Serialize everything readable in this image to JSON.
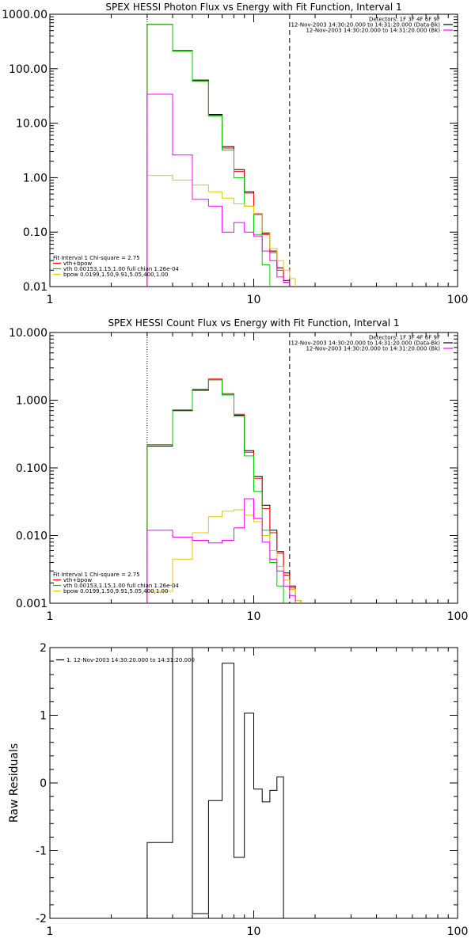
{
  "chart_data": [
    {
      "type": "line",
      "title": "SPEX HESSI Photon Flux vs Energy with Fit Function, Interval 1",
      "xscale": "log",
      "yscale": "log",
      "xlim": [
        1,
        100
      ],
      "ylim": [
        0.01,
        1000
      ],
      "x_tick_labels": [
        "1",
        "10",
        "100"
      ],
      "y_tick_labels": [
        "0.01",
        "0.10",
        "1.00",
        "10.00",
        "100.00",
        "1000.00"
      ],
      "vlines": [
        {
          "x": 3,
          "style": "dotted"
        },
        {
          "x": 15,
          "style": "dashed"
        }
      ],
      "legend_top_right": [
        {
          "text": "Detectors: 1F 3F 4F 6F 9F",
          "color": ""
        },
        {
          "text": "12-Nov-2003 14:30:20.000 to 14:31:20.000 (Data-Bk)",
          "color": "#000000"
        },
        {
          "text": "12-Nov-2003 14:30:20.000 to 14:31:20.000 (Bk)",
          "color": "#ff00ff"
        }
      ],
      "legend_bottom_left": [
        {
          "text": "Fit Interval 1   Chi-square = 2.75",
          "color": ""
        },
        {
          "text": "vth+bpow",
          "color": "#ff0000"
        },
        {
          "text": "vth 0.00153,1.15,1.00  full chian 1.26e-04",
          "color": "#00cc00"
        },
        {
          "text": "bpow 0.0199,1.50,9.91,5.05,400,1.00",
          "color": "#e6c800"
        }
      ],
      "edges": [
        3,
        4,
        5,
        6,
        7,
        8,
        9,
        10,
        11,
        12,
        13,
        14,
        15,
        16,
        17,
        18
      ],
      "series": [
        {
          "name": "Data-Bk",
          "color": "#000000",
          "values": [
            650,
            215,
            62,
            14.5,
            3.7,
            1.4,
            0.55,
            0.22,
            0.095,
            0.045,
            0.022,
            0.013,
            null,
            null,
            null
          ]
        },
        {
          "name": "vth+bpow",
          "color": "#ff0000",
          "values": [
            650,
            210,
            60,
            14,
            3.5,
            1.3,
            0.52,
            0.21,
            0.09,
            0.042,
            0.02,
            0.012,
            null,
            null,
            null
          ]
        },
        {
          "name": "vth",
          "color": "#00cc00",
          "values": [
            650,
            210,
            59,
            13.5,
            3.2,
            1.0,
            0.3,
            0.09,
            0.025,
            0.007,
            null,
            null,
            null,
            null,
            null
          ]
        },
        {
          "name": "bpow",
          "color": "#e6c800",
          "values": [
            1.1,
            0.9,
            0.73,
            0.55,
            0.42,
            0.33,
            0.3,
            0.22,
            0.1,
            0.05,
            0.03,
            0.02,
            0.014,
            null,
            null
          ]
        },
        {
          "name": "Bk",
          "color": "#ff00ff",
          "values": [
            34,
            2.6,
            0.4,
            0.3,
            0.1,
            0.15,
            0.1,
            0.085,
            0.045,
            0.03,
            0.015,
            0.012,
            null,
            null,
            null
          ]
        }
      ]
    },
    {
      "type": "line",
      "title": "SPEX HESSI Count Flux vs Energy with Fit Function, Interval 1",
      "xscale": "log",
      "yscale": "log",
      "xlim": [
        1,
        100
      ],
      "ylim": [
        0.001,
        10
      ],
      "x_tick_labels": [
        "1",
        "10",
        "100"
      ],
      "y_tick_labels": [
        "0.001",
        "0.010",
        "0.100",
        "1.000",
        "10.000"
      ],
      "vlines": [
        {
          "x": 3,
          "style": "dotted"
        },
        {
          "x": 15,
          "style": "dashed"
        }
      ],
      "legend_top_right": [
        {
          "text": "Detectors: 1F 3F 4F 6F 9F",
          "color": ""
        },
        {
          "text": "12-Nov-2003 14:30:20.000 to 14:31:20.000 (Data-Bk)",
          "color": "#000000"
        },
        {
          "text": "12-Nov-2003 14:30:20.000 to 14:31:20.000 (Bk)",
          "color": "#ff00ff"
        }
      ],
      "legend_bottom_left": [
        {
          "text": "Fit Interval 1   Chi-square = 2.75",
          "color": ""
        },
        {
          "text": "vth+bpow",
          "color": "#ff0000"
        },
        {
          "text": "vth 0.00153,1.15,1.00  full chian 1.26e-04",
          "color": "#00cc00"
        },
        {
          "text": "bpow 0.0199,1.50,9.91,5.05,400,1.00",
          "color": "#e6c800"
        }
      ],
      "edges": [
        3,
        4,
        5,
        6,
        7,
        8,
        9,
        10,
        11,
        12,
        13,
        14,
        15,
        16,
        17,
        18,
        19,
        20
      ],
      "series": [
        {
          "name": "Data-Bk",
          "color": "#000000",
          "values": [
            0.21,
            0.7,
            1.4,
            2.0,
            1.2,
            0.6,
            0.18,
            0.075,
            0.028,
            0.012,
            0.0058,
            0.0028,
            0.0018,
            0.0011,
            null,
            null,
            null
          ]
        },
        {
          "name": "vth+bpow",
          "color": "#ff0000",
          "values": [
            0.22,
            0.72,
            1.45,
            2.05,
            1.25,
            0.62,
            0.17,
            0.07,
            0.025,
            0.011,
            0.0055,
            0.0026,
            0.0017,
            0.0011,
            null,
            null,
            null
          ]
        },
        {
          "name": "vth",
          "color": "#00cc00",
          "values": [
            0.22,
            0.72,
            1.45,
            2.0,
            1.2,
            0.58,
            0.15,
            0.045,
            0.012,
            0.004,
            0.0018,
            null,
            null,
            null,
            null,
            null,
            null
          ]
        },
        {
          "name": "bpow",
          "color": "#e6c800",
          "values": [
            0.0015,
            0.0045,
            0.011,
            0.019,
            0.023,
            0.024,
            0.02,
            0.016,
            0.01,
            0.006,
            0.0035,
            0.0022,
            0.0016,
            0.0011,
            null,
            null,
            null
          ]
        },
        {
          "name": "Bk",
          "color": "#ff00ff",
          "values": [
            0.012,
            0.0095,
            0.0085,
            0.0078,
            0.0085,
            0.013,
            0.035,
            0.018,
            0.008,
            0.0045,
            0.003,
            0.0018,
            0.0013,
            null,
            null,
            null,
            null
          ]
        }
      ]
    },
    {
      "type": "line",
      "title": "",
      "xscale": "log",
      "yscale": "linear",
      "xlim": [
        1,
        100
      ],
      "ylim": [
        -2,
        2
      ],
      "ylabel": "Raw Residuals",
      "x_tick_labels": [
        "1",
        "10",
        "100"
      ],
      "y_tick_labels": [
        "-2",
        "-1",
        "0",
        "1",
        "2"
      ],
      "y_tick_values": [
        -2,
        -1,
        0,
        1,
        2
      ],
      "legend_top_left": [
        {
          "text": "1. 12-Nov-2003 14:30:20.000 to 14:31:20.000",
          "color": "#000000"
        }
      ],
      "edges": [
        3,
        4,
        5,
        6,
        7,
        8,
        9,
        10,
        11,
        12,
        13,
        14,
        15
      ],
      "series": [
        {
          "name": "",
          "color": "#000000",
          "values": [
            -0.88,
            2.02,
            -1.93,
            -0.26,
            1.77,
            -1.1,
            1.03,
            -0.09,
            -0.28,
            -0.11,
            0.09
          ]
        }
      ]
    }
  ]
}
